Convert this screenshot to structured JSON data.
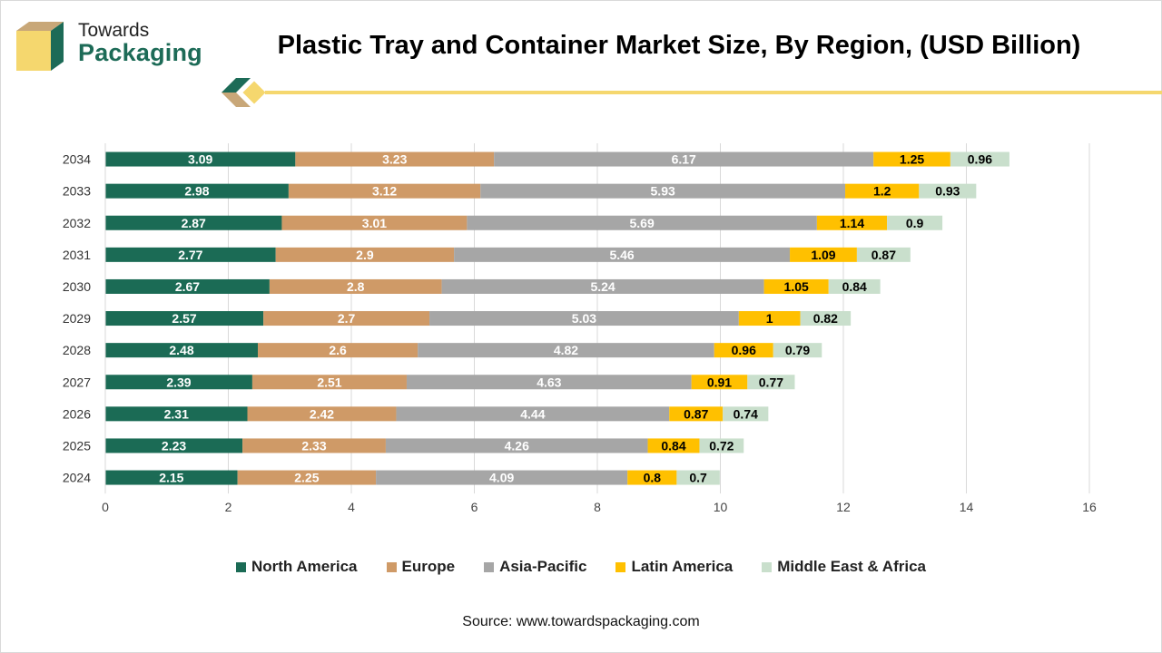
{
  "brand": {
    "line1": "Towards",
    "line2": "Packaging"
  },
  "title": "Plastic Tray and Container Market Size, By Region, (USD Billion)",
  "source": "Source: www.towardspackaging.com",
  "colors": {
    "accent_yellow": "#f5d76e",
    "brand_green": "#1d6b57"
  },
  "chart_data": {
    "type": "bar",
    "orientation": "horizontal",
    "stacked": true,
    "categories": [
      "2034",
      "2033",
      "2032",
      "2031",
      "2030",
      "2029",
      "2028",
      "2027",
      "2026",
      "2025",
      "2024"
    ],
    "series": [
      {
        "name": "North America",
        "color": "#1b6b55",
        "label_color": "#ffffff",
        "values": [
          3.09,
          2.98,
          2.87,
          2.77,
          2.67,
          2.57,
          2.48,
          2.39,
          2.31,
          2.23,
          2.15
        ]
      },
      {
        "name": "Europe",
        "color": "#cf9a67",
        "label_color": "#ffffff",
        "values": [
          3.23,
          3.12,
          3.01,
          2.9,
          2.8,
          2.7,
          2.6,
          2.51,
          2.42,
          2.33,
          2.25
        ]
      },
      {
        "name": "Asia-Pacific",
        "color": "#a6a6a6",
        "label_color": "#ffffff",
        "values": [
          6.17,
          5.93,
          5.69,
          5.46,
          5.24,
          5.03,
          4.82,
          4.63,
          4.44,
          4.26,
          4.09
        ]
      },
      {
        "name": "Latin America",
        "color": "#ffc000",
        "label_color": "#000000",
        "values": [
          1.25,
          1.2,
          1.14,
          1.09,
          1.05,
          1,
          0.96,
          0.91,
          0.87,
          0.84,
          0.8
        ]
      },
      {
        "name": "Middle East & Africa",
        "color": "#c9dfcc",
        "label_color": "#000000",
        "values": [
          0.96,
          0.93,
          0.9,
          0.87,
          0.84,
          0.82,
          0.79,
          0.77,
          0.74,
          0.72,
          0.7
        ]
      }
    ],
    "xlim": [
      0,
      16
    ],
    "xticks": [
      0,
      2,
      4,
      6,
      8,
      10,
      12,
      14,
      16
    ],
    "grid": "vertical",
    "legend_position": "bottom",
    "xlabel": "",
    "ylabel": ""
  }
}
